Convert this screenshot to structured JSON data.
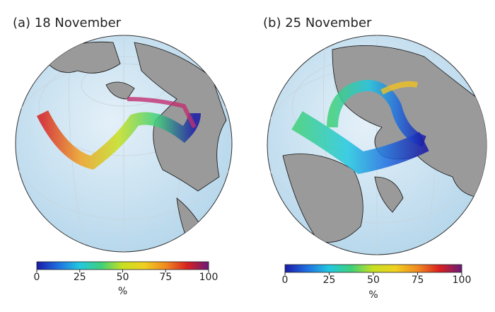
{
  "panels": [
    {
      "title": "(a) 18 November",
      "colorbar": {
        "lim": [
          0,
          100
        ],
        "ticks": [
          0,
          25,
          50,
          75,
          100
        ],
        "label": "%"
      }
    },
    {
      "title": "(b) 25 November",
      "colorbar": {
        "lim": [
          0,
          100
        ],
        "ticks": [
          0,
          25,
          50,
          75,
          100
        ],
        "label": "%"
      }
    }
  ],
  "colormap": [
    "#1a1aa8",
    "#1f6fe0",
    "#22c8e0",
    "#3fd07a",
    "#c8e020",
    "#f0d020",
    "#f08a20",
    "#d82020",
    "#6a1a7a"
  ]
}
